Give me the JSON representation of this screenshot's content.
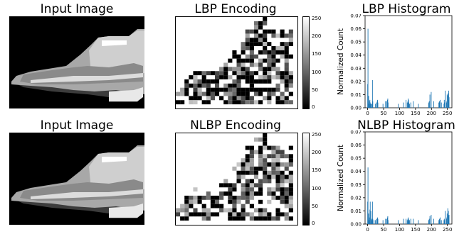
{
  "row1": {
    "input_title": "Input Image",
    "encoding_title": "LBP Encoding",
    "hist_title": "LBP Histogram"
  },
  "row2": {
    "input_title": "Input Image",
    "encoding_title": "NLBP Encoding",
    "hist_title": "NLBP Histogram"
  },
  "colorbar_ticks": [
    "250",
    "200",
    "150",
    "100",
    "50",
    "0"
  ],
  "chart_data": [
    {
      "type": "bar",
      "title": "LBP Histogram",
      "xlabel": "",
      "ylabel": "Normalized Count",
      "xlim": [
        -8,
        264
      ],
      "ylim": [
        0,
        0.07
      ],
      "xticks": [
        0,
        50,
        100,
        150,
        200,
        250
      ],
      "yticks": [
        0.0,
        0.01,
        0.02,
        0.03,
        0.04,
        0.05,
        0.06,
        0.07
      ],
      "ytick_labels": [
        "0.00",
        "0.01",
        "0.02",
        "0.03",
        "0.04",
        "0.05",
        "0.06",
        "0.07"
      ],
      "color": "#1f77b4",
      "bins": [
        0,
        1,
        2,
        3,
        4,
        6,
        7,
        8,
        9,
        12,
        14,
        15,
        16,
        24,
        28,
        30,
        31,
        32,
        48,
        56,
        60,
        62,
        63,
        64,
        96,
        112,
        120,
        124,
        126,
        127,
        128,
        129,
        131,
        135,
        143,
        159,
        191,
        192,
        193,
        195,
        199,
        207,
        223,
        224,
        225,
        227,
        231,
        239,
        240,
        241,
        243,
        247,
        248,
        249,
        251,
        252,
        253,
        254,
        255
      ],
      "values": [
        0.018,
        0.06,
        0.004,
        0.009,
        0.003,
        0.005,
        0.006,
        0.004,
        0.003,
        0.003,
        0.003,
        0.021,
        0.005,
        0.003,
        0.004,
        0.005,
        0.006,
        0.004,
        0.003,
        0.005,
        0.005,
        0.006,
        0.007,
        0.004,
        0.003,
        0.004,
        0.006,
        0.004,
        0.005,
        0.007,
        0.006,
        0.004,
        0.003,
        0.004,
        0.005,
        0.003,
        0.004,
        0.003,
        0.005,
        0.01,
        0.012,
        0.005,
        0.004,
        0.004,
        0.005,
        0.006,
        0.004,
        0.003,
        0.006,
        0.004,
        0.013,
        0.004,
        0.005,
        0.01,
        0.009,
        0.011,
        0.006,
        0.013,
        0.008
      ]
    },
    {
      "type": "bar",
      "title": "NLBP Histogram",
      "xlabel": "",
      "ylabel": "Normalized Count",
      "xlim": [
        -8,
        264
      ],
      "ylim": [
        0,
        0.07
      ],
      "xticks": [
        0,
        50,
        100,
        150,
        200,
        250
      ],
      "yticks": [
        0.0,
        0.01,
        0.02,
        0.03,
        0.04,
        0.05,
        0.06,
        0.07
      ],
      "ytick_labels": [
        "0.00",
        "0.01",
        "0.02",
        "0.03",
        "0.04",
        "0.05",
        "0.06",
        "0.07"
      ],
      "color": "#1f77b4",
      "bins": [
        0,
        1,
        2,
        3,
        4,
        6,
        7,
        8,
        10,
        12,
        14,
        15,
        16,
        20,
        24,
        28,
        30,
        31,
        32,
        48,
        56,
        60,
        62,
        63,
        64,
        96,
        112,
        120,
        124,
        126,
        127,
        128,
        129,
        131,
        135,
        143,
        159,
        191,
        192,
        193,
        195,
        199,
        207,
        223,
        224,
        225,
        227,
        231,
        239,
        240,
        241,
        243,
        247,
        248,
        249,
        251,
        252,
        253,
        254,
        255
      ],
      "values": [
        0.017,
        0.043,
        0.004,
        0.008,
        0.003,
        0.005,
        0.011,
        0.017,
        0.01,
        0.004,
        0.003,
        0.017,
        0.004,
        0.003,
        0.003,
        0.004,
        0.004,
        0.005,
        0.004,
        0.003,
        0.004,
        0.004,
        0.005,
        0.006,
        0.003,
        0.003,
        0.004,
        0.004,
        0.003,
        0.004,
        0.005,
        0.004,
        0.003,
        0.003,
        0.004,
        0.004,
        0.003,
        0.003,
        0.003,
        0.004,
        0.006,
        0.007,
        0.004,
        0.003,
        0.003,
        0.004,
        0.005,
        0.003,
        0.003,
        0.004,
        0.003,
        0.01,
        0.004,
        0.005,
        0.008,
        0.012,
        0.006,
        0.01,
        0.006,
        0.007
      ]
    }
  ]
}
